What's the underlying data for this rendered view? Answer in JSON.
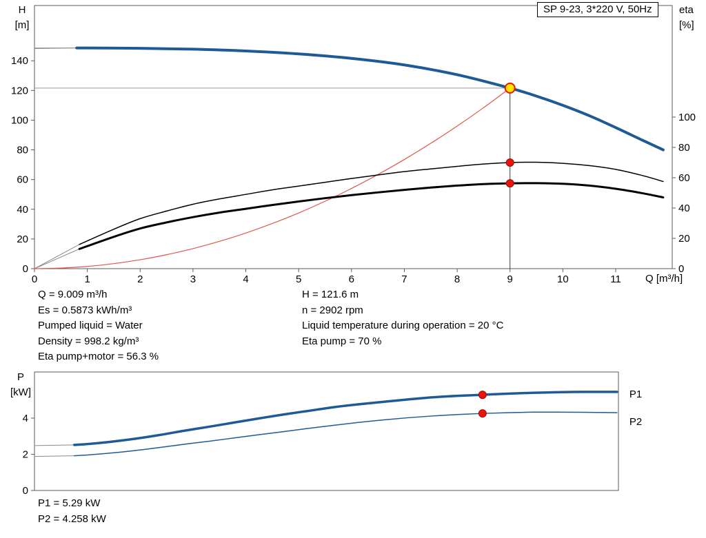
{
  "title_box": {
    "label": "SP 9-23, 3*220 V, 50Hz"
  },
  "axis_units": {
    "head": [
      "H",
      "[m]"
    ],
    "eta": [
      "eta",
      "[%]"
    ],
    "flow": "Q [m³/h]",
    "power": [
      "P",
      "[kW]"
    ]
  },
  "annotations": {
    "left": [
      "Q = 9.009 m³/h",
      "Es = 0.5873 kWh/m³",
      "Pumped liquid = Water",
      "Density = 998.2 kg/m³",
      "Eta pump+motor = 56.3 %"
    ],
    "right": [
      "H = 121.6 m",
      "n = 2902 rpm",
      "Liquid temperature during operation = 20 °C",
      "Eta pump = 70 %"
    ],
    "power": [
      "P1 = 5.29 kW",
      "P2 = 4.258 kW"
    ]
  },
  "colors": {
    "curve_blue": "#1d5a96",
    "curve_black": "#000000",
    "duty_red": "#e8150d",
    "system_red": "#e2554a",
    "leadin_gray": "#8a8a8a",
    "ref_gray": "#9a9a9a",
    "frame_gray": "#5a5a5a",
    "marker_yellow": "#ffe400"
  },
  "chart_data": [
    {
      "id": "head-eta-chart",
      "type": "line",
      "title": "SP 9-23, 3*220 V, 50Hz",
      "xlabel": "Q [m³/h]",
      "ylabel": "H [m]",
      "ylabel_right": "eta [%]",
      "xlim": [
        0,
        12.07
      ],
      "xticks": [
        0,
        1,
        2,
        3,
        4,
        5,
        6,
        7,
        8,
        9,
        10,
        11
      ],
      "ylim": [
        0,
        177.2
      ],
      "yticks": [
        0,
        20,
        40,
        60,
        80,
        100,
        120,
        140
      ],
      "ylim_right": [
        0,
        173.6
      ],
      "yticks_right": [
        0,
        20,
        40,
        60,
        80,
        100
      ],
      "grid": false,
      "frame_color": "#5a5a5a",
      "duty_point": {
        "Q": 9.009,
        "H": 121.6,
        "eta_pump": 70,
        "eta_pump_motor": 56.3
      },
      "ref_lines": [
        {
          "name": "shutoff-head-line",
          "orient": "h",
          "at": 148.6,
          "from": 0,
          "to": 2.5,
          "axis": "left",
          "color": "#9a9a9a",
          "width": 1
        },
        {
          "name": "duty-head-line",
          "orient": "h",
          "at": 121.6,
          "from": 0,
          "to": 9,
          "axis": "left",
          "color": "#9a9a9a",
          "width": 1
        },
        {
          "name": "duty-flow-line",
          "orient": "v",
          "at": 9,
          "from": 0,
          "to": 121.6,
          "axis": "left",
          "color": "#3a3a3a",
          "width": 1
        }
      ],
      "series": [
        {
          "name": "H curve lead-in",
          "axis": "left",
          "color": "#8a8a8a",
          "width": 1,
          "points": [
            [
              0,
              148.2
            ],
            [
              0.8,
              148.6
            ]
          ]
        },
        {
          "name": "eta pump lead-in",
          "axis": "right",
          "color": "#8a8a8a",
          "width": 1,
          "points": [
            [
              0,
              0
            ],
            [
              0.85,
              16
            ]
          ]
        },
        {
          "name": "eta pump motor lead-in",
          "axis": "right",
          "color": "#8a8a8a",
          "width": 1,
          "points": [
            [
              0,
              0
            ],
            [
              0.85,
              13
            ]
          ]
        },
        {
          "name": "system curve",
          "axis": "left",
          "color": "#e2554a",
          "width": 1.2,
          "points": [
            [
              0,
              0
            ],
            [
              0.5,
              0.4
            ],
            [
              1,
              1.5
            ],
            [
              1.5,
              3.4
            ],
            [
              2,
              6
            ],
            [
              2.5,
              9.4
            ],
            [
              3,
              13.5
            ],
            [
              3.5,
              18.4
            ],
            [
              4,
              24
            ],
            [
              4.5,
              30.4
            ],
            [
              5,
              37.5
            ],
            [
              5.5,
              45.4
            ],
            [
              6,
              54
            ],
            [
              6.5,
              63.4
            ],
            [
              7,
              73.5
            ],
            [
              7.5,
              84.4
            ],
            [
              8,
              96
            ],
            [
              8.5,
              108.4
            ],
            [
              9,
              121.6
            ]
          ]
        },
        {
          "name": "eta pump",
          "axis": "right",
          "color": "#000000",
          "width": 1.5,
          "points": [
            [
              0.85,
              16
            ],
            [
              1.5,
              26
            ],
            [
              2,
              33
            ],
            [
              2.5,
              38
            ],
            [
              3,
              42.5
            ],
            [
              3.5,
              46
            ],
            [
              4,
              49
            ],
            [
              4.5,
              52
            ],
            [
              5,
              54.5
            ],
            [
              5.5,
              57
            ],
            [
              6,
              59.5
            ],
            [
              6.5,
              61.8
            ],
            [
              7,
              64
            ],
            [
              7.5,
              65.8
            ],
            [
              8,
              67.5
            ],
            [
              8.5,
              69
            ],
            [
              9,
              70
            ],
            [
              9.5,
              70.2
            ],
            [
              10,
              69.5
            ],
            [
              10.5,
              68
            ],
            [
              11,
              65.5
            ],
            [
              11.5,
              61.5
            ],
            [
              11.9,
              57.5
            ]
          ]
        },
        {
          "name": "eta pump motor",
          "axis": "right",
          "color": "#000000",
          "width": 3,
          "points": [
            [
              0.85,
              13
            ],
            [
              1.5,
              21
            ],
            [
              2,
              26.5
            ],
            [
              2.5,
              30.5
            ],
            [
              3,
              34
            ],
            [
              3.5,
              37
            ],
            [
              4,
              39.5
            ],
            [
              4.5,
              42
            ],
            [
              5,
              44.3
            ],
            [
              5.5,
              46.5
            ],
            [
              6,
              48.5
            ],
            [
              6.5,
              50.3
            ],
            [
              7,
              52
            ],
            [
              7.5,
              53.5
            ],
            [
              8,
              54.8
            ],
            [
              8.5,
              55.8
            ],
            [
              9,
              56.3
            ],
            [
              9.5,
              56.4
            ],
            [
              10,
              56
            ],
            [
              10.5,
              54.8
            ],
            [
              11,
              52.7
            ],
            [
              11.5,
              49.8
            ],
            [
              11.9,
              47
            ]
          ]
        },
        {
          "name": "H curve",
          "axis": "left",
          "color": "#1d5a96",
          "width": 4,
          "points": [
            [
              0.8,
              148.6
            ],
            [
              1,
              148.6
            ],
            [
              2,
              148.4
            ],
            [
              3,
              147.8
            ],
            [
              4,
              146.6
            ],
            [
              5,
              144.6
            ],
            [
              6,
              141.6
            ],
            [
              7,
              137.2
            ],
            [
              8,
              130.6
            ],
            [
              9,
              121.6
            ],
            [
              9.5,
              116.2
            ],
            [
              10,
              110
            ],
            [
              10.5,
              103
            ],
            [
              11,
              95
            ],
            [
              11.5,
              86.6
            ],
            [
              11.9,
              80
            ]
          ]
        }
      ],
      "markers": [
        {
          "name": "eta-pump-marker",
          "interactable": false,
          "x": 9,
          "y": 70,
          "axis": "right",
          "r": 5.5,
          "fill": "#e8150d",
          "stroke": "#9e0b05",
          "stroke_width": 1
        },
        {
          "name": "eta-pump-motor-marker",
          "interactable": false,
          "x": 9,
          "y": 56.3,
          "axis": "right",
          "r": 5.5,
          "fill": "#e8150d",
          "stroke": "#9e0b05",
          "stroke_width": 1
        },
        {
          "name": "duty-point-marker",
          "interactable": true,
          "x": 9,
          "y": 121.6,
          "axis": "left",
          "r": 7,
          "fill": "#ffe400",
          "stroke": "#e8150d",
          "stroke_width": 2
        }
      ],
      "labels": []
    },
    {
      "id": "power-chart",
      "type": "line",
      "xlabel": "Q [m³/h]",
      "ylabel": "P [kW]",
      "xlim": [
        0,
        11.73
      ],
      "xticks": [],
      "ylim": [
        0,
        6.55
      ],
      "yticks": [
        0,
        2,
        4
      ],
      "grid": false,
      "frame_color": "#5a5a5a",
      "duty_point": {
        "Q": 9.009,
        "P1": 5.29,
        "P2": 4.258
      },
      "ref_lines": [],
      "series": [
        {
          "name": "P1 lead-in",
          "axis": "left",
          "color": "#8a8a8a",
          "width": 1,
          "points": [
            [
              0,
              2.48
            ],
            [
              0.8,
              2.52
            ]
          ]
        },
        {
          "name": "P2 lead-in",
          "axis": "left",
          "color": "#8a8a8a",
          "width": 1,
          "points": [
            [
              0,
              1.88
            ],
            [
              0.8,
              1.92
            ]
          ]
        },
        {
          "name": "P2",
          "axis": "left",
          "color": "#1d5a96",
          "width": 1.5,
          "points": [
            [
              0.8,
              1.92
            ],
            [
              1,
              1.95
            ],
            [
              1.5,
              2.06
            ],
            [
              2,
              2.2
            ],
            [
              2.5,
              2.37
            ],
            [
              3,
              2.55
            ],
            [
              3.5,
              2.72
            ],
            [
              4,
              2.9
            ],
            [
              4.5,
              3.08
            ],
            [
              5,
              3.25
            ],
            [
              5.5,
              3.43
            ],
            [
              6,
              3.6
            ],
            [
              6.5,
              3.76
            ],
            [
              7,
              3.9
            ],
            [
              7.5,
              4.02
            ],
            [
              8,
              4.12
            ],
            [
              8.5,
              4.2
            ],
            [
              9,
              4.258
            ],
            [
              9.5,
              4.3
            ],
            [
              10,
              4.33
            ],
            [
              10.5,
              4.33
            ],
            [
              11,
              4.32
            ],
            [
              11.7,
              4.3
            ]
          ]
        },
        {
          "name": "P1",
          "axis": "left",
          "color": "#1d5a96",
          "width": 3.5,
          "points": [
            [
              0.8,
              2.52
            ],
            [
              1,
              2.55
            ],
            [
              1.5,
              2.68
            ],
            [
              2,
              2.85
            ],
            [
              2.5,
              3.06
            ],
            [
              3,
              3.3
            ],
            [
              3.5,
              3.52
            ],
            [
              4,
              3.75
            ],
            [
              4.5,
              3.98
            ],
            [
              5,
              4.2
            ],
            [
              5.5,
              4.4
            ],
            [
              6,
              4.6
            ],
            [
              6.5,
              4.76
            ],
            [
              7,
              4.9
            ],
            [
              7.5,
              5.03
            ],
            [
              8,
              5.15
            ],
            [
              8.5,
              5.23
            ],
            [
              9,
              5.29
            ],
            [
              9.5,
              5.35
            ],
            [
              10,
              5.4
            ],
            [
              10.5,
              5.43
            ],
            [
              11,
              5.45
            ],
            [
              11.7,
              5.45
            ]
          ]
        }
      ],
      "markers": [
        {
          "name": "p1-duty-marker",
          "interactable": false,
          "x": 9,
          "y": 5.29,
          "axis": "left",
          "r": 5.5,
          "fill": "#e8150d",
          "stroke": "#9e0b05",
          "stroke_width": 1
        },
        {
          "name": "p2-duty-marker",
          "interactable": false,
          "x": 9,
          "y": 4.258,
          "axis": "left",
          "r": 5.5,
          "fill": "#e8150d",
          "stroke": "#9e0b05",
          "stroke_width": 1
        }
      ],
      "labels": [
        {
          "name": "p1-curve-label",
          "text": "P1",
          "x": 11.95,
          "y": 5.15,
          "color": "#1d5a96"
        },
        {
          "name": "p2-curve-label",
          "text": "P2",
          "x": 11.95,
          "y": 3.62,
          "color": "#1d5a96"
        }
      ]
    }
  ]
}
